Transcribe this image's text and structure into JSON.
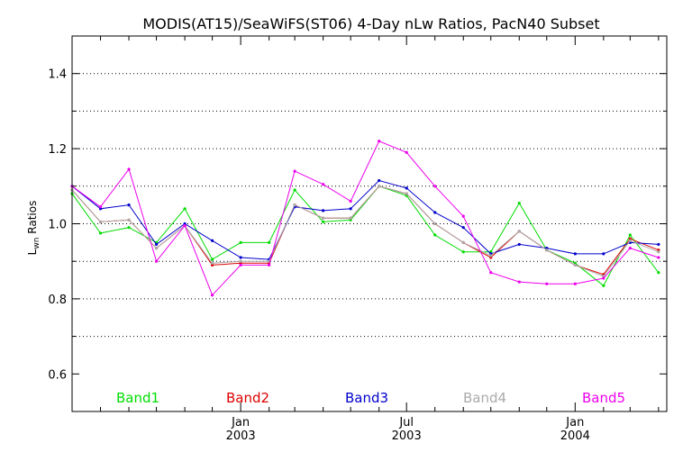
{
  "chart_data": {
    "type": "line",
    "title": "MODIS(AT15)/SeaWiFS(ST06) 4-Day nLw Ratios, PacN40 Subset",
    "ylabel_main": "L",
    "ylabel_sub": "wn",
    "ylabel_rest": " Ratios",
    "ylim": [
      0.5,
      1.5
    ],
    "yticks": [
      {
        "value": 0.6,
        "label": "0.6"
      },
      {
        "value": 0.8,
        "label": "0.8"
      },
      {
        "value": 1.0,
        "label": "1.0"
      },
      {
        "value": 1.2,
        "label": "1.2"
      },
      {
        "value": 1.4,
        "label": "1.4"
      }
    ],
    "ygrid": [
      0.7,
      0.8,
      0.9,
      1.0,
      1.1,
      1.2,
      1.3,
      1.4
    ],
    "xlim": [
      "2002-07-01",
      "2004-04-10"
    ],
    "xticks": [
      {
        "date": "2003-01-01",
        "label1": "Jan",
        "label2": "2003"
      },
      {
        "date": "2003-07-01",
        "label1": "Jul",
        "label2": "2003"
      },
      {
        "date": "2004-01-01",
        "label1": "Jan",
        "label2": "2004"
      }
    ],
    "xminor": [
      "2002-08-01",
      "2002-09-01",
      "2002-10-01",
      "2002-11-01",
      "2002-12-01",
      "2003-02-01",
      "2003-03-01",
      "2003-04-01",
      "2003-05-01",
      "2003-06-01",
      "2003-08-01",
      "2003-09-01",
      "2003-10-01",
      "2003-11-01",
      "2003-12-01",
      "2004-02-01",
      "2004-03-01",
      "2004-04-01"
    ],
    "x": [
      "2002-07-01",
      "2002-08-01",
      "2002-09-01",
      "2002-10-01",
      "2002-11-01",
      "2002-12-01",
      "2003-01-01",
      "2003-02-01",
      "2003-03-01",
      "2003-04-01",
      "2003-05-01",
      "2003-06-01",
      "2003-07-01",
      "2003-08-01",
      "2003-09-01",
      "2003-10-01",
      "2003-11-01",
      "2003-12-01",
      "2004-01-01",
      "2004-02-01",
      "2004-03-01",
      "2004-04-01"
    ],
    "series": [
      {
        "name": "Band1",
        "color": "#00dd00",
        "values": [
          1.08,
          0.975,
          0.99,
          0.95,
          1.04,
          0.905,
          0.95,
          0.95,
          1.09,
          1.005,
          1.01,
          1.1,
          1.075,
          0.97,
          0.925,
          0.925,
          1.055,
          0.93,
          0.895,
          0.835,
          0.97,
          0.87
        ]
      },
      {
        "name": "Band2",
        "color": "#dd0000",
        "values": [
          1.09,
          1.005,
          1.01,
          0.935,
          0.995,
          0.89,
          0.895,
          0.895,
          1.05,
          1.015,
          1.015,
          1.1,
          1.08,
          1.0,
          0.95,
          0.91,
          0.98,
          0.93,
          0.89,
          0.865,
          0.96,
          0.93
        ]
      },
      {
        "name": "Band3",
        "color": "#0000cc",
        "values": [
          1.1,
          1.04,
          1.05,
          0.945,
          1.0,
          0.955,
          0.91,
          0.905,
          1.045,
          1.035,
          1.04,
          1.115,
          1.095,
          1.03,
          0.99,
          0.92,
          0.945,
          0.935,
          0.92,
          0.92,
          0.95,
          0.945
        ]
      },
      {
        "name": "Band4",
        "color": "#aaaaaa",
        "values": [
          1.09,
          1.005,
          1.01,
          0.935,
          0.995,
          0.895,
          0.9,
          0.9,
          1.05,
          1.015,
          1.015,
          1.1,
          1.08,
          1.0,
          0.95,
          0.915,
          0.98,
          0.93,
          0.89,
          0.86,
          0.955,
          0.925
        ]
      },
      {
        "name": "Band5",
        "color": "#ee00ee",
        "values": [
          1.1,
          1.045,
          1.145,
          0.9,
          0.995,
          0.81,
          0.89,
          0.89,
          1.14,
          1.105,
          1.06,
          1.22,
          1.19,
          1.1,
          1.02,
          0.87,
          0.845,
          0.84,
          0.84,
          0.855,
          0.935,
          0.91
        ]
      }
    ],
    "legend_placement": "bottom-inside",
    "grid": "horizontal-dotted"
  }
}
